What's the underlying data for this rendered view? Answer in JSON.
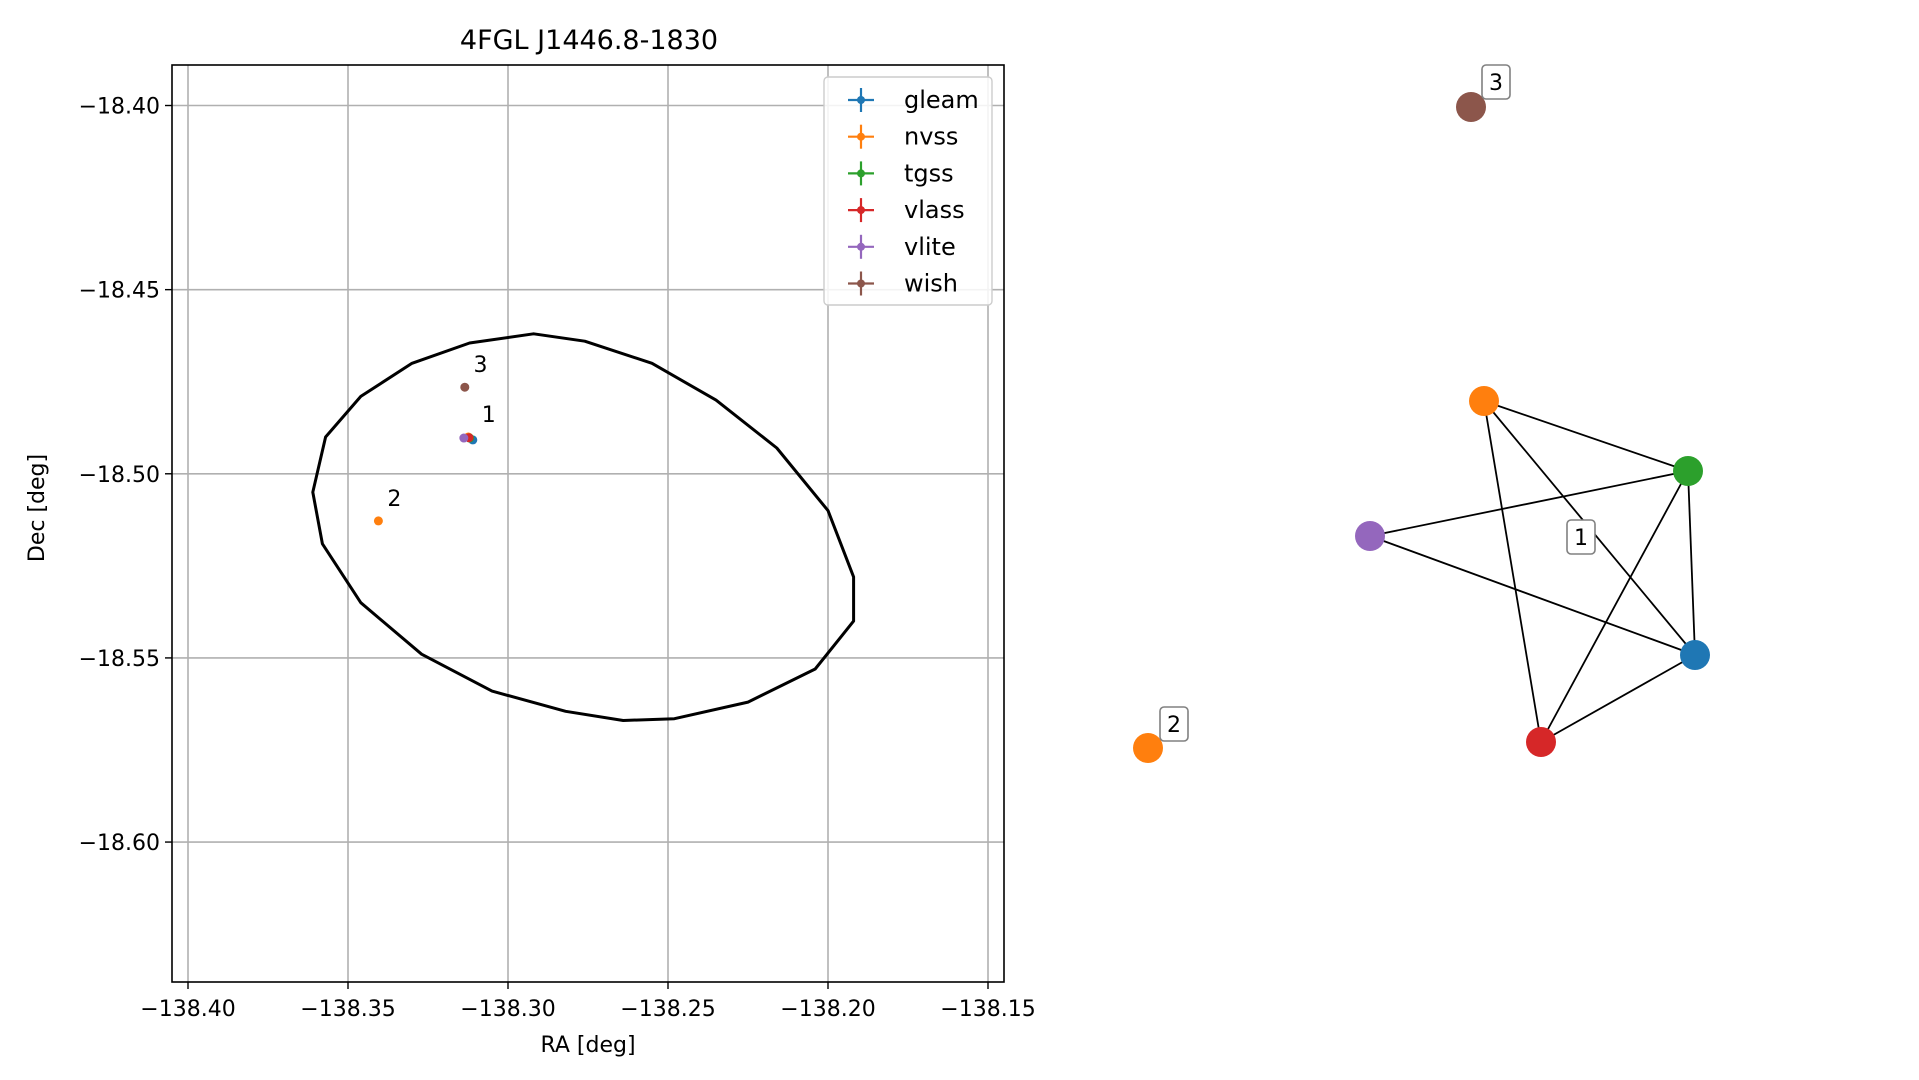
{
  "chart_data": [
    {
      "type": "scatter",
      "title": "4FGL J1446.8-1830",
      "xlabel": "RA [deg]",
      "ylabel": "Dec [deg]",
      "xlim": [
        -138.405,
        -138.145
      ],
      "ylim": [
        -18.638,
        -18.389
      ],
      "xticks": [
        -138.4,
        -138.35,
        -138.3,
        -138.25,
        -138.2,
        -138.15
      ],
      "xtick_labels": [
        "−138.40",
        "−138.35",
        "−138.30",
        "−138.25",
        "−138.20",
        "−138.15"
      ],
      "yticks": [
        -18.4,
        -18.45,
        -18.5,
        -18.55,
        -18.6
      ],
      "ytick_labels": [
        "−18.40",
        "−18.45",
        "−18.50",
        "−18.55",
        "−18.60"
      ],
      "grid": true,
      "legend_position": "upper-right",
      "series": [
        {
          "name": "gleam",
          "color": "#1f77b4",
          "points": [
            {
              "x": -138.311,
              "y": -18.4908
            }
          ]
        },
        {
          "name": "nvss",
          "color": "#ff7f0e",
          "points": [
            {
              "x": -138.3124,
              "y": -18.49
            },
            {
              "x": -138.3405,
              "y": -18.5128
            }
          ]
        },
        {
          "name": "tgss",
          "color": "#2ca02c",
          "points": [
            {
              "x": -138.312,
              "y": -18.4903
            }
          ]
        },
        {
          "name": "vlass",
          "color": "#d62728",
          "points": [
            {
              "x": -138.3122,
              "y": -18.4902
            }
          ]
        },
        {
          "name": "vlite",
          "color": "#9467bd",
          "points": [
            {
              "x": -138.3138,
              "y": -18.4903
            }
          ]
        },
        {
          "name": "wish",
          "color": "#8c564b",
          "points": [
            {
              "x": -138.3135,
              "y": -18.4765
            }
          ]
        }
      ],
      "ellipse": {
        "color": "#000000",
        "outline": [
          [
            -138.292,
            -18.462
          ],
          [
            -138.276,
            -18.464
          ],
          [
            -138.255,
            -18.47
          ],
          [
            -138.235,
            -18.48
          ],
          [
            -138.216,
            -18.493
          ],
          [
            -138.2,
            -18.51
          ],
          [
            -138.192,
            -18.528
          ],
          [
            -138.192,
            -18.54
          ],
          [
            -138.204,
            -18.553
          ],
          [
            -138.225,
            -18.562
          ],
          [
            -138.248,
            -18.5665
          ],
          [
            -138.264,
            -18.567
          ],
          [
            -138.282,
            -18.5645
          ],
          [
            -138.305,
            -18.559
          ],
          [
            -138.327,
            -18.549
          ],
          [
            -138.346,
            -18.535
          ],
          [
            -138.358,
            -18.519
          ],
          [
            -138.361,
            -18.505
          ],
          [
            -138.357,
            -18.49
          ],
          [
            -138.346,
            -18.479
          ],
          [
            -138.33,
            -18.47
          ],
          [
            -138.312,
            -18.4645
          ]
        ]
      },
      "annotations": [
        {
          "text": "1",
          "x": -138.3082,
          "y": -18.486
        },
        {
          "text": "2",
          "x": -138.3377,
          "y": -18.5087
        },
        {
          "text": "3",
          "x": -138.3108,
          "y": -18.4724
        }
      ]
    },
    {
      "type": "network",
      "nodes": [
        {
          "id": "gleam",
          "color": "#1f77b4",
          "group": "1"
        },
        {
          "id": "nvss",
          "color": "#ff7f0e",
          "group": "1"
        },
        {
          "id": "tgss",
          "color": "#2ca02c",
          "group": "1"
        },
        {
          "id": "vlass",
          "color": "#d62728",
          "group": "1"
        },
        {
          "id": "vlite",
          "color": "#9467bd",
          "group": "1"
        },
        {
          "id": "nvss",
          "color": "#ff7f0e",
          "group": "2"
        },
        {
          "id": "wish",
          "color": "#8c564b",
          "group": "3"
        }
      ],
      "edges": [
        [
          "nvss",
          "tgss"
        ],
        [
          "nvss",
          "vlass"
        ],
        [
          "nvss",
          "gleam"
        ],
        [
          "tgss",
          "vlite"
        ],
        [
          "tgss",
          "vlass"
        ],
        [
          "tgss",
          "gleam"
        ],
        [
          "vlite",
          "gleam"
        ],
        [
          "gleam",
          "vlass"
        ]
      ],
      "group_labels": [
        "1",
        "2",
        "3"
      ]
    }
  ]
}
